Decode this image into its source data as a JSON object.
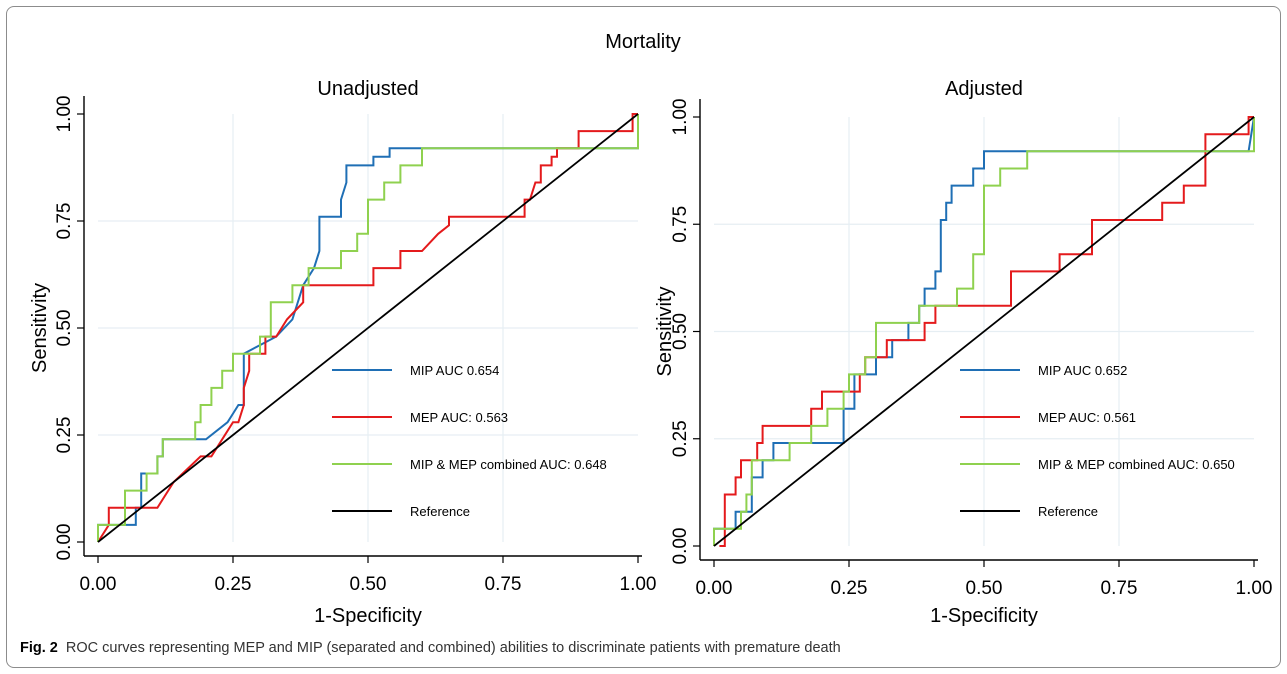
{
  "figure": {
    "title": "Mortality",
    "caption_label": "Fig. 2",
    "caption_text": "ROC curves representing MEP and MIP (separated and combined) abilities to discriminate patients with premature death"
  },
  "colors": {
    "mip": "#1f6fb5",
    "mep": "#e41a1c",
    "combined": "#8fd14f",
    "reference": "#000000",
    "grid": "#e6eef3"
  },
  "chart_data": [
    {
      "type": "line",
      "title": "Unadjusted",
      "xlabel": "1-Specificity",
      "ylabel": "Sensitivity",
      "xlim": [
        0,
        1
      ],
      "ylim": [
        0,
        1
      ],
      "xticks": [
        "0.00",
        "0.25",
        "0.50",
        "0.75",
        "1.00"
      ],
      "yticks": [
        "0.00",
        "0.25",
        "0.50",
        "0.75",
        "1.00"
      ],
      "grid": true,
      "legend_position": "lower-right",
      "series": [
        {
          "name": "MIP AUC 0.654",
          "color_key": "mip",
          "x": [
            0,
            0,
            0.05,
            0.07,
            0.07,
            0.08,
            0.08,
            0.11,
            0.11,
            0.12,
            0.12,
            0.2,
            0.24,
            0.25,
            0.26,
            0.27,
            0.27,
            0.3,
            0.33,
            0.36,
            0.38,
            0.4,
            0.41,
            0.41,
            0.45,
            0.45,
            0.46,
            0.46,
            0.51,
            0.51,
            0.54,
            0.54,
            1,
            1
          ],
          "y": [
            0,
            0.04,
            0.04,
            0.04,
            0.08,
            0.08,
            0.16,
            0.16,
            0.2,
            0.2,
            0.24,
            0.24,
            0.28,
            0.3,
            0.32,
            0.32,
            0.44,
            0.46,
            0.48,
            0.52,
            0.6,
            0.64,
            0.68,
            0.76,
            0.76,
            0.8,
            0.84,
            0.88,
            0.88,
            0.9,
            0.9,
            0.92,
            0.92,
            1
          ]
        },
        {
          "name": "MEP AUC: 0.563",
          "color_key": "mep",
          "x": [
            0,
            0.02,
            0.02,
            0.06,
            0.11,
            0.14,
            0.19,
            0.21,
            0.23,
            0.25,
            0.26,
            0.27,
            0.27,
            0.28,
            0.28,
            0.31,
            0.31,
            0.33,
            0.35,
            0.38,
            0.38,
            0.41,
            0.41,
            0.51,
            0.51,
            0.56,
            0.56,
            0.6,
            0.6,
            0.63,
            0.65,
            0.65,
            0.73,
            0.75,
            0.77,
            0.79,
            0.79,
            0.8,
            0.8,
            0.81,
            0.82,
            0.82,
            0.84,
            0.84,
            0.85,
            0.85,
            0.89,
            0.89,
            0.99,
            0.99,
            1
          ],
          "y": [
            0,
            0.04,
            0.08,
            0.08,
            0.08,
            0.14,
            0.2,
            0.2,
            0.24,
            0.28,
            0.28,
            0.32,
            0.36,
            0.4,
            0.44,
            0.44,
            0.48,
            0.48,
            0.52,
            0.56,
            0.6,
            0.6,
            0.6,
            0.6,
            0.64,
            0.64,
            0.68,
            0.68,
            0.68,
            0.72,
            0.74,
            0.76,
            0.76,
            0.76,
            0.76,
            0.76,
            0.8,
            0.8,
            0.8,
            0.84,
            0.84,
            0.88,
            0.88,
            0.9,
            0.9,
            0.92,
            0.92,
            0.96,
            0.96,
            1,
            1
          ]
        },
        {
          "name": "MIP & MEP combined AUC: 0.648",
          "color_key": "combined",
          "x": [
            0,
            0,
            0.05,
            0.05,
            0.09,
            0.09,
            0.11,
            0.11,
            0.12,
            0.12,
            0.18,
            0.18,
            0.19,
            0.19,
            0.21,
            0.21,
            0.23,
            0.23,
            0.25,
            0.25,
            0.28,
            0.28,
            0.3,
            0.3,
            0.32,
            0.32,
            0.36,
            0.36,
            0.39,
            0.39,
            0.45,
            0.45,
            0.48,
            0.48,
            0.5,
            0.5,
            0.53,
            0.53,
            0.56,
            0.56,
            0.6,
            0.6,
            1,
            1
          ],
          "y": [
            0,
            0.04,
            0.04,
            0.12,
            0.12,
            0.16,
            0.16,
            0.2,
            0.2,
            0.24,
            0.24,
            0.28,
            0.28,
            0.32,
            0.32,
            0.36,
            0.36,
            0.4,
            0.4,
            0.44,
            0.44,
            0.44,
            0.44,
            0.48,
            0.48,
            0.56,
            0.56,
            0.6,
            0.6,
            0.64,
            0.64,
            0.68,
            0.68,
            0.72,
            0.72,
            0.8,
            0.8,
            0.84,
            0.84,
            0.88,
            0.88,
            0.92,
            0.92,
            1
          ]
        },
        {
          "name": "Reference",
          "color_key": "reference",
          "x": [
            0,
            1
          ],
          "y": [
            0,
            1
          ]
        }
      ]
    },
    {
      "type": "line",
      "title": "Adjusted",
      "xlabel": "1-Specificity",
      "ylabel": "Sensitivity",
      "xlim": [
        0,
        1
      ],
      "ylim": [
        0,
        1
      ],
      "xticks": [
        "0.00",
        "0.25",
        "0.50",
        "0.75",
        "1.00"
      ],
      "yticks": [
        "0.00",
        "0.25",
        "0.50",
        "0.75",
        "1.00"
      ],
      "grid": true,
      "legend_position": "lower-right",
      "series": [
        {
          "name": "MIP AUC 0.652",
          "color_key": "mip",
          "x": [
            0,
            0,
            0.04,
            0.04,
            0.07,
            0.07,
            0.09,
            0.09,
            0.11,
            0.11,
            0.24,
            0.24,
            0.26,
            0.26,
            0.3,
            0.3,
            0.33,
            0.33,
            0.36,
            0.36,
            0.38,
            0.38,
            0.39,
            0.39,
            0.41,
            0.41,
            0.42,
            0.42,
            0.43,
            0.43,
            0.44,
            0.44,
            0.48,
            0.48,
            0.5,
            0.5,
            0.58,
            0.58,
            0.99,
            0.99,
            1
          ],
          "y": [
            0,
            0.04,
            0.04,
            0.08,
            0.08,
            0.16,
            0.16,
            0.2,
            0.2,
            0.24,
            0.24,
            0.32,
            0.32,
            0.4,
            0.4,
            0.44,
            0.44,
            0.48,
            0.48,
            0.52,
            0.52,
            0.56,
            0.56,
            0.6,
            0.6,
            0.64,
            0.64,
            0.76,
            0.76,
            0.8,
            0.8,
            0.84,
            0.84,
            0.88,
            0.88,
            0.92,
            0.92,
            0.92,
            0.92,
            0.92,
            1
          ]
        },
        {
          "name": "MEP AUC: 0.561",
          "color_key": "mep",
          "x": [
            0.01,
            0.01,
            0.02,
            0.02,
            0.04,
            0.04,
            0.05,
            0.05,
            0.08,
            0.08,
            0.09,
            0.09,
            0.18,
            0.18,
            0.2,
            0.2,
            0.23,
            0.23,
            0.27,
            0.27,
            0.28,
            0.28,
            0.32,
            0.32,
            0.39,
            0.39,
            0.41,
            0.41,
            0.55,
            0.55,
            0.64,
            0.64,
            0.7,
            0.7,
            0.83,
            0.83,
            0.87,
            0.87,
            0.91,
            0.91,
            0.99,
            0.99,
            1
          ],
          "y": [
            0,
            0,
            0,
            0.12,
            0.12,
            0.16,
            0.16,
            0.2,
            0.2,
            0.24,
            0.24,
            0.28,
            0.28,
            0.32,
            0.32,
            0.36,
            0.36,
            0.36,
            0.36,
            0.4,
            0.4,
            0.44,
            0.44,
            0.48,
            0.48,
            0.52,
            0.52,
            0.56,
            0.56,
            0.64,
            0.64,
            0.68,
            0.68,
            0.76,
            0.76,
            0.8,
            0.8,
            0.84,
            0.84,
            0.96,
            0.96,
            1,
            1
          ]
        },
        {
          "name": "MIP & MEP combined AUC: 0.650",
          "color_key": "combined",
          "x": [
            0,
            0,
            0.05,
            0.05,
            0.06,
            0.06,
            0.07,
            0.07,
            0.14,
            0.14,
            0.18,
            0.18,
            0.21,
            0.21,
            0.24,
            0.24,
            0.25,
            0.25,
            0.28,
            0.28,
            0.3,
            0.3,
            0.38,
            0.38,
            0.45,
            0.45,
            0.48,
            0.48,
            0.5,
            0.5,
            0.53,
            0.53,
            0.58,
            0.58,
            1,
            1
          ],
          "y": [
            0,
            0.04,
            0.04,
            0.08,
            0.08,
            0.12,
            0.12,
            0.2,
            0.2,
            0.24,
            0.24,
            0.28,
            0.28,
            0.32,
            0.32,
            0.36,
            0.36,
            0.4,
            0.4,
            0.44,
            0.44,
            0.52,
            0.52,
            0.56,
            0.56,
            0.6,
            0.6,
            0.68,
            0.68,
            0.84,
            0.84,
            0.88,
            0.88,
            0.92,
            0.92,
            1
          ]
        },
        {
          "name": "Reference",
          "color_key": "reference",
          "x": [
            0,
            1
          ],
          "y": [
            0,
            1
          ]
        }
      ]
    }
  ]
}
